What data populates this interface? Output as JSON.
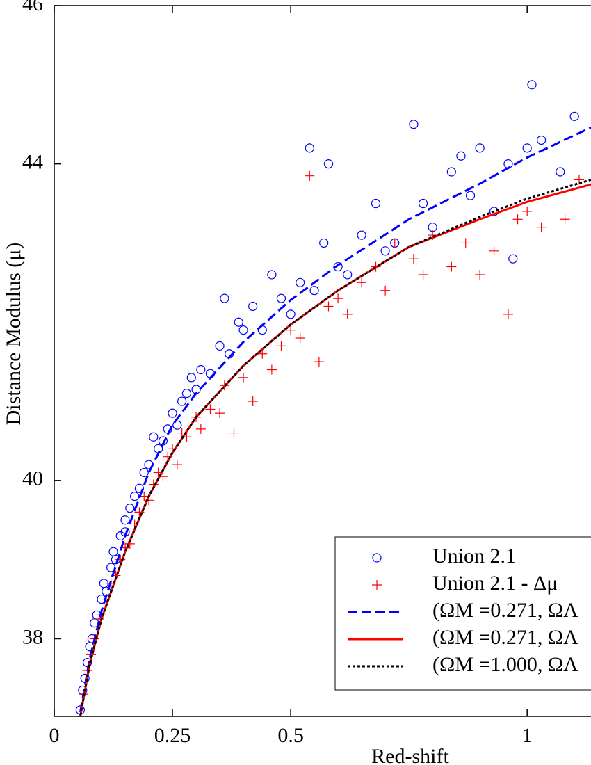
{
  "chart_data": {
    "type": "scatter",
    "x_label": "Red-shift",
    "y_label": "Distance Modulus (μ)",
    "xlim": [
      0,
      1.135
    ],
    "ylim": [
      37.02,
      46
    ],
    "xticks": [
      0,
      0.25,
      0.5,
      1
    ],
    "yticks": [
      38,
      40,
      44,
      46
    ],
    "legend": "lower right",
    "series": [
      {
        "name": "Union 2.1",
        "color": "#0000ff",
        "marker": "circle",
        "x": [
          0.055,
          0.06,
          0.065,
          0.07,
          0.075,
          0.08,
          0.085,
          0.09,
          0.1,
          0.105,
          0.11,
          0.12,
          0.125,
          0.13,
          0.14,
          0.15,
          0.15,
          0.16,
          0.17,
          0.18,
          0.19,
          0.2,
          0.21,
          0.22,
          0.23,
          0.24,
          0.25,
          0.26,
          0.27,
          0.28,
          0.29,
          0.3,
          0.31,
          0.33,
          0.35,
          0.36,
          0.37,
          0.39,
          0.4,
          0.42,
          0.44,
          0.46,
          0.48,
          0.5,
          0.52,
          0.54,
          0.55,
          0.57,
          0.58,
          0.6,
          0.62,
          0.65,
          0.68,
          0.7,
          0.72,
          0.76,
          0.78,
          0.8,
          0.84,
          0.86,
          0.88,
          0.9,
          0.93,
          0.96,
          0.97,
          1.0,
          1.01,
          1.03,
          1.07,
          1.1
        ],
        "values": [
          37.1,
          37.35,
          37.5,
          37.7,
          37.9,
          38.0,
          38.2,
          38.3,
          38.5,
          38.7,
          38.6,
          38.9,
          39.1,
          39.0,
          39.3,
          39.5,
          39.35,
          39.65,
          39.8,
          39.9,
          40.1,
          40.2,
          40.55,
          40.4,
          40.5,
          40.65,
          40.85,
          40.7,
          41.0,
          41.1,
          41.3,
          41.15,
          41.4,
          41.35,
          41.7,
          42.3,
          41.6,
          42.0,
          41.9,
          42.2,
          41.9,
          42.6,
          42.3,
          42.1,
          42.5,
          44.2,
          42.4,
          43.0,
          44.0,
          42.7,
          42.6,
          43.1,
          43.5,
          42.9,
          43.0,
          44.5,
          43.5,
          43.2,
          43.9,
          44.1,
          43.6,
          44.2,
          43.4,
          44.0,
          42.8,
          44.2,
          45.0,
          44.3,
          43.9,
          44.6
        ]
      },
      {
        "name": "Union 2.1 - Δμ",
        "color": "#ff0000",
        "marker": "plus",
        "x": [
          0.055,
          0.062,
          0.07,
          0.078,
          0.085,
          0.095,
          0.1,
          0.11,
          0.12,
          0.13,
          0.14,
          0.15,
          0.16,
          0.17,
          0.18,
          0.19,
          0.2,
          0.21,
          0.22,
          0.23,
          0.24,
          0.25,
          0.26,
          0.27,
          0.28,
          0.3,
          0.31,
          0.33,
          0.35,
          0.36,
          0.38,
          0.4,
          0.42,
          0.44,
          0.46,
          0.48,
          0.5,
          0.52,
          0.54,
          0.56,
          0.58,
          0.6,
          0.62,
          0.65,
          0.68,
          0.7,
          0.72,
          0.76,
          0.78,
          0.8,
          0.84,
          0.87,
          0.9,
          0.93,
          0.96,
          0.98,
          1.0,
          1.03,
          1.08,
          1.11
        ],
        "values": [
          37.0,
          37.3,
          37.6,
          37.8,
          38.0,
          38.25,
          38.3,
          38.5,
          38.7,
          38.8,
          39.0,
          39.15,
          39.2,
          39.45,
          39.6,
          39.8,
          39.75,
          39.95,
          40.1,
          40.05,
          40.3,
          40.4,
          40.2,
          40.6,
          40.55,
          40.8,
          40.65,
          40.9,
          40.85,
          41.2,
          40.6,
          41.3,
          41.0,
          41.6,
          41.4,
          41.7,
          41.9,
          41.8,
          43.85,
          41.5,
          42.2,
          42.3,
          42.1,
          42.5,
          42.7,
          42.4,
          43.0,
          42.8,
          42.6,
          43.1,
          42.7,
          43.0,
          42.6,
          42.9,
          42.1,
          43.3,
          43.4,
          43.2,
          43.3,
          43.8
        ]
      },
      {
        "name": "(ΩM =0.271, ΩΛ",
        "color": "#0000ff",
        "line": "dashed",
        "x": [
          0.05,
          0.075,
          0.1,
          0.15,
          0.2,
          0.25,
          0.3,
          0.4,
          0.5,
          0.6,
          0.75,
          0.9,
          1,
          1.135
        ],
        "values": [
          36.9,
          37.75,
          38.35,
          39.3,
          40.1,
          40.7,
          41.1,
          41.75,
          42.28,
          42.72,
          43.3,
          43.75,
          44.08,
          44.46
        ]
      },
      {
        "name": "(ΩM =0.271, ΩΛ",
        "color": "#ff0000",
        "line": "solid",
        "x": [
          0.05,
          0.075,
          0.1,
          0.15,
          0.2,
          0.25,
          0.3,
          0.4,
          0.5,
          0.6,
          0.75,
          0.9,
          1,
          1.135
        ],
        "values": [
          36.85,
          37.68,
          38.25,
          39.1,
          39.8,
          40.35,
          40.8,
          41.45,
          41.97,
          42.4,
          42.95,
          43.3,
          43.52,
          43.74
        ]
      },
      {
        "name": "(ΩM =1.000, ΩΛ",
        "color": "#000000",
        "line": "dotted",
        "x": [
          0.05,
          0.075,
          0.1,
          0.15,
          0.2,
          0.25,
          0.3,
          0.4,
          0.5,
          0.6,
          0.75,
          0.9,
          1,
          1.135
        ],
        "values": [
          36.85,
          37.68,
          38.25,
          39.1,
          39.8,
          40.35,
          40.8,
          41.45,
          41.97,
          42.4,
          42.95,
          43.33,
          43.56,
          43.8
        ]
      }
    ]
  }
}
